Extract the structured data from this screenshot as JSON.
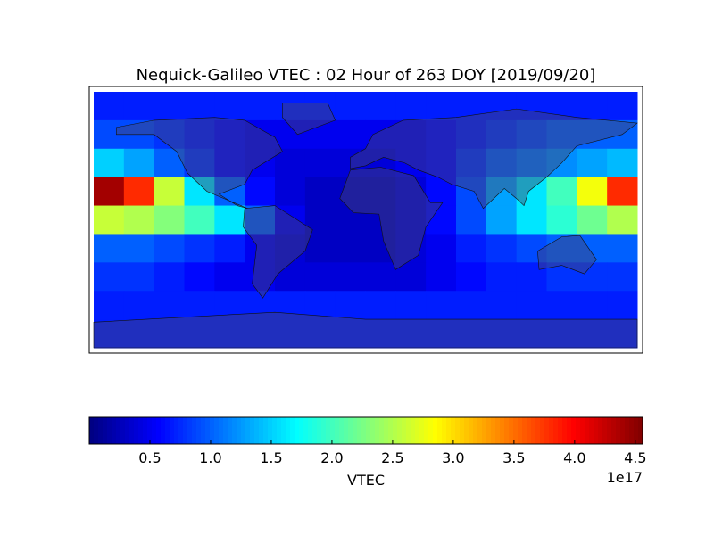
{
  "chart_data": {
    "type": "heatmap",
    "title": "Nequick-Galileo VTEC : 02 Hour of 263 DOY [2019/09/20]",
    "values": [
      [
        0.7,
        0.7,
        0.7,
        0.7,
        0.7,
        0.7,
        0.7,
        0.7,
        0.7,
        0.7,
        0.7,
        0.7,
        0.7,
        0.7,
        0.7,
        0.7,
        0.7,
        0.7
      ],
      [
        0.9,
        0.9,
        0.8,
        0.7,
        0.6,
        0.5,
        0.5,
        0.5,
        0.5,
        0.5,
        0.5,
        0.6,
        0.7,
        0.8,
        0.9,
        1.0,
        1.0,
        1.0
      ],
      [
        1.5,
        1.3,
        1.0,
        0.8,
        0.6,
        0.5,
        0.4,
        0.4,
        0.4,
        0.4,
        0.5,
        0.6,
        0.8,
        1.0,
        1.1,
        1.2,
        1.3,
        1.4
      ],
      [
        4.4,
        3.8,
        2.6,
        1.6,
        1.0,
        0.6,
        0.4,
        0.3,
        0.3,
        0.3,
        0.4,
        0.6,
        0.9,
        1.3,
        1.6,
        2.0,
        2.8,
        3.8
      ],
      [
        2.6,
        2.5,
        2.3,
        2.0,
        1.6,
        1.0,
        0.5,
        0.3,
        0.3,
        0.3,
        0.4,
        0.6,
        0.9,
        1.3,
        1.6,
        1.9,
        2.2,
        2.5
      ],
      [
        1.0,
        1.0,
        0.9,
        0.8,
        0.7,
        0.5,
        0.4,
        0.3,
        0.3,
        0.3,
        0.4,
        0.5,
        0.7,
        0.8,
        0.9,
        1.0,
        1.0,
        1.0
      ],
      [
        0.8,
        0.8,
        0.7,
        0.6,
        0.5,
        0.5,
        0.4,
        0.4,
        0.4,
        0.4,
        0.4,
        0.5,
        0.6,
        0.7,
        0.7,
        0.8,
        0.8,
        0.8
      ],
      [
        0.7,
        0.7,
        0.7,
        0.7,
        0.7,
        0.7,
        0.7,
        0.7,
        0.7,
        0.7,
        0.7,
        0.7,
        0.7,
        0.7,
        0.7,
        0.7,
        0.7,
        0.7
      ],
      [
        0.7,
        0.7,
        0.7,
        0.7,
        0.7,
        0.7,
        0.7,
        0.7,
        0.7,
        0.7,
        0.7,
        0.7,
        0.7,
        0.7,
        0.7,
        0.7,
        0.7,
        0.7
      ]
    ],
    "colormap": "jet",
    "clim": [
      0,
      4.56
    ],
    "cticks": [
      0.5,
      {
        "value": 1.0,
        "label": "1.0"
      },
      1.5,
      {
        "value": 2.0,
        "label": "2.0"
      },
      2.5,
      {
        "value": 3.0,
        "label": "3.0"
      },
      3.5,
      {
        "value": 4.0,
        "label": "4.0"
      },
      4.5
    ],
    "colorbar_label": "VTEC",
    "colorbar_offset": "1e17"
  }
}
